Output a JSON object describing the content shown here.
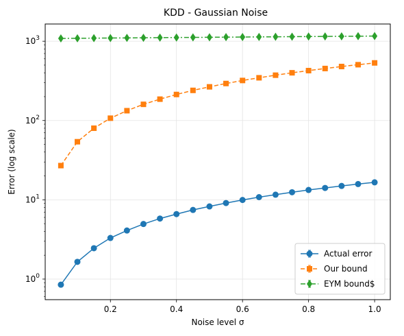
{
  "chart_data": {
    "type": "line",
    "title": "KDD - Gaussian Noise",
    "xlabel": "Noise level σ",
    "ylabel": "Error (log scale)",
    "x_scale": "linear",
    "y_scale": "log",
    "xlim": [
      0.0025,
      1.0475
    ],
    "ylim": [
      0.55,
      1650
    ],
    "xticks": [
      {
        "value": 0.2,
        "label": "0.2"
      },
      {
        "value": 0.4,
        "label": "0.4"
      },
      {
        "value": 0.6,
        "label": "0.6"
      },
      {
        "value": 0.8,
        "label": "0.8"
      },
      {
        "value": 1.0,
        "label": "1.0"
      }
    ],
    "yticks": [
      {
        "value": 1,
        "base": "10",
        "exp": "0"
      },
      {
        "value": 10,
        "base": "10",
        "exp": "1"
      },
      {
        "value": 100,
        "base": "10",
        "exp": "2"
      },
      {
        "value": 1000,
        "base": "10",
        "exp": "3"
      }
    ],
    "grid": true,
    "legend_position": "lower-right",
    "x": [
      0.05,
      0.1,
      0.15,
      0.2,
      0.25,
      0.3,
      0.35,
      0.4,
      0.45,
      0.5,
      0.55,
      0.6,
      0.65,
      0.7,
      0.75,
      0.8,
      0.85,
      0.9,
      0.95,
      1.0
    ],
    "series": [
      {
        "name": "Actual error",
        "color": "#1f77b4",
        "marker": "circle",
        "line_style": "solid",
        "values": [
          0.85,
          1.65,
          2.45,
          3.3,
          4.1,
          4.95,
          5.8,
          6.6,
          7.45,
          8.25,
          9.1,
          9.95,
          10.8,
          11.6,
          12.45,
          13.3,
          14.1,
          14.95,
          15.8,
          16.6
        ]
      },
      {
        "name": "Our bound",
        "color": "#ff7f0e",
        "marker": "square",
        "line_style": "dashed",
        "values": [
          27,
          54,
          80,
          107,
          133,
          160,
          186,
          213,
          240,
          266,
          293,
          320,
          346,
          373,
          400,
          426,
          453,
          480,
          506,
          533
        ]
      },
      {
        "name": "EYM bound$",
        "color": "#2ca02c",
        "marker": "diamond",
        "line_style": "dashdot",
        "values": [
          1085,
          1090,
          1094,
          1098,
          1102,
          1106,
          1110,
          1114,
          1118,
          1122,
          1126,
          1130,
          1134,
          1138,
          1142,
          1146,
          1150,
          1154,
          1158,
          1162
        ]
      }
    ]
  }
}
